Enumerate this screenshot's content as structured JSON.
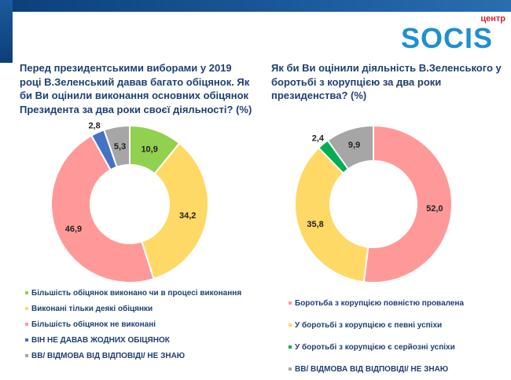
{
  "logo": {
    "top": "центр",
    "word": "SOCIS"
  },
  "chart_data": [
    {
      "type": "pie",
      "title": "Перед президентськими виборами у 2019 році В.Зеленський давав багато обіцянок. Як би Ви оцінили виконання основних обіцянок Президента за два роки своєї діяльності? (%)",
      "categories": [
        "Більшість обіцянок виконано чи в процесі виконання",
        "Виконані тільки деякі обіцянки",
        "Більшість обіцянок не виконані",
        "ВІН НЕ ДАВАВ ЖОДНИХ ОБІЦЯНОК",
        "ВВ/ ВІДМОВА ВІД ВІДПОВІДІ/ НЕ ЗНАЮ"
      ],
      "values": [
        10.9,
        34.2,
        46.9,
        2.8,
        5.3
      ],
      "labels": [
        "10,9",
        "34,2",
        "46,9",
        "2,8",
        "5,3"
      ],
      "colors": [
        "#92d050",
        "#ffd966",
        "#ff9999",
        "#4472c4",
        "#a6a6a6"
      ],
      "legend": "bottom"
    },
    {
      "type": "pie",
      "title": "Як би Ви оцінили діяльність В.Зеленського у боротьбі з корупцією за два роки президенства? (%)",
      "categories": [
        "Боротьба з корупцією повністю провалена",
        "У боротьбі з корупцією є певні успіхи",
        "У боротьбі з корупцією є серйозні успіхи",
        "ВВ/ ВІДМОВА ВІД ВІДПОВІДІ/ НЕ ЗНАЮ"
      ],
      "values": [
        52.0,
        35.8,
        2.4,
        9.9
      ],
      "labels": [
        "52,0",
        "35,8",
        "2,4",
        "9,9"
      ],
      "colors": [
        "#ff9999",
        "#ffd966",
        "#00b050",
        "#a6a6a6"
      ],
      "legend": "bottom"
    }
  ]
}
